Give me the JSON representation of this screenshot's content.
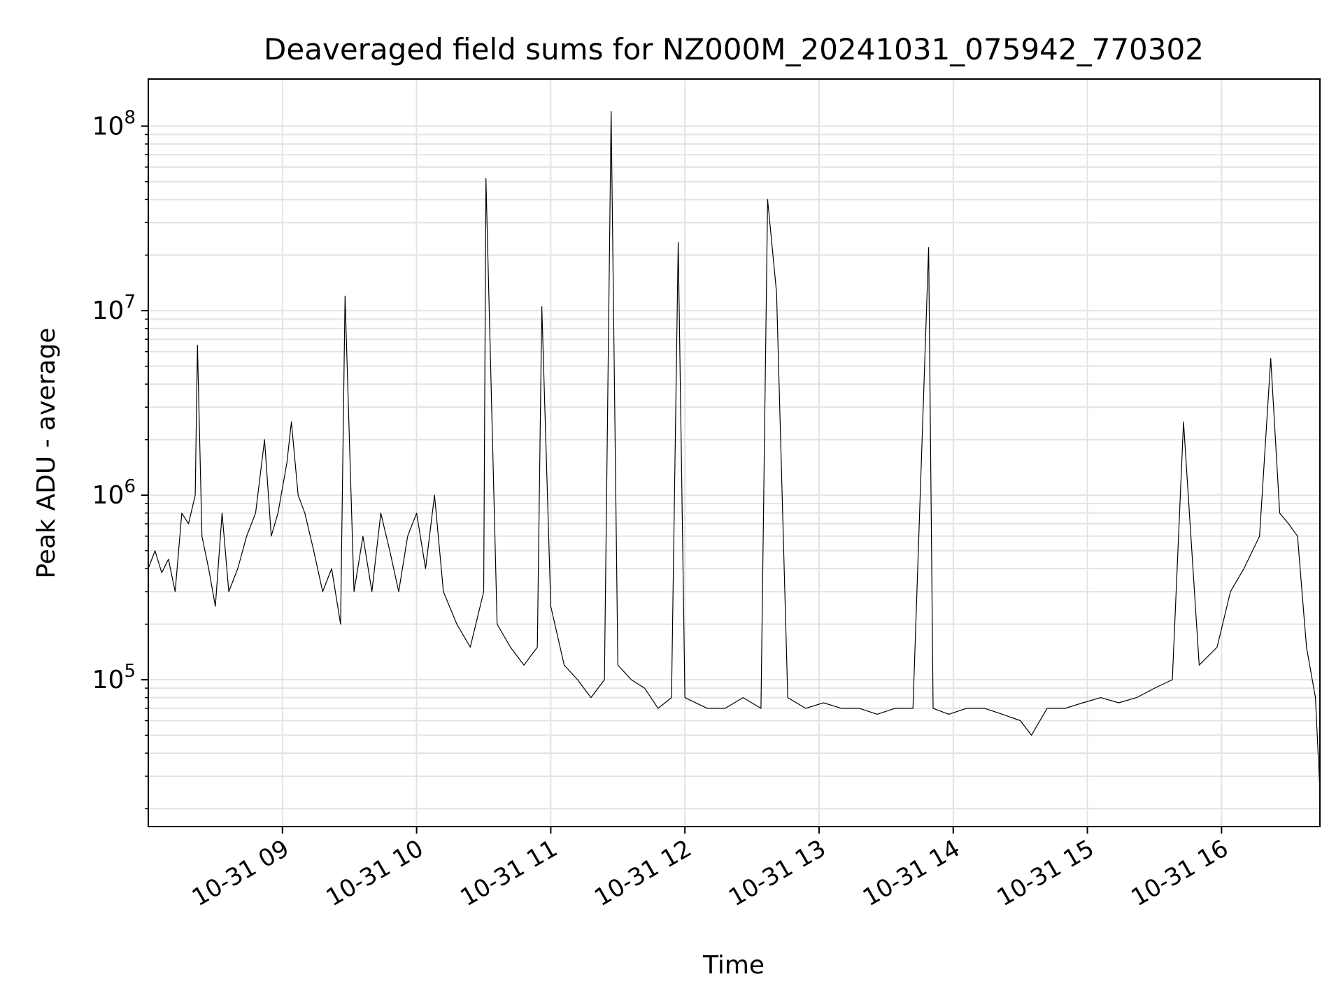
{
  "chart_data": {
    "type": "line",
    "title": "Deaveraged field sums for NZ000M_20241031_075942_770302",
    "xlabel": "Time",
    "ylabel": "Peak ADU - average",
    "yscale": "log",
    "ylim": [
      16000,
      180000000
    ],
    "xlim": [
      "2024-10-31 08:00",
      "2024-10-31 16:44"
    ],
    "grid": true,
    "line_color": "#000000",
    "x_ticks": [
      {
        "t": "2024-10-31 09:00",
        "label": "10-31 09"
      },
      {
        "t": "2024-10-31 10:00",
        "label": "10-31 10"
      },
      {
        "t": "2024-10-31 11:00",
        "label": "10-31 11"
      },
      {
        "t": "2024-10-31 12:00",
        "label": "10-31 12"
      },
      {
        "t": "2024-10-31 13:00",
        "label": "10-31 13"
      },
      {
        "t": "2024-10-31 14:00",
        "label": "10-31 14"
      },
      {
        "t": "2024-10-31 15:00",
        "label": "10-31 15"
      },
      {
        "t": "2024-10-31 16:00",
        "label": "10-31 16"
      }
    ],
    "y_ticks": [
      {
        "value": 100000,
        "base": "10",
        "exp": "5"
      },
      {
        "value": 1000000,
        "base": "10",
        "exp": "6"
      },
      {
        "value": 10000000,
        "base": "10",
        "exp": "7"
      },
      {
        "value": 100000000,
        "base": "10",
        "exp": "8"
      }
    ],
    "series": [
      {
        "x": [
          "2024-10-31 08:00",
          "2024-10-31 08:03",
          "2024-10-31 08:06",
          "2024-10-31 08:09",
          "2024-10-31 08:12",
          "2024-10-31 08:15",
          "2024-10-31 08:18",
          "2024-10-31 08:21",
          "2024-10-31 08:22",
          "2024-10-31 08:24",
          "2024-10-31 08:27",
          "2024-10-31 08:30",
          "2024-10-31 08:33",
          "2024-10-31 08:36",
          "2024-10-31 08:40",
          "2024-10-31 08:44",
          "2024-10-31 08:48",
          "2024-10-31 08:52",
          "2024-10-31 08:55",
          "2024-10-31 08:58",
          "2024-10-31 09:02",
          "2024-10-31 09:04",
          "2024-10-31 09:07",
          "2024-10-31 09:10",
          "2024-10-31 09:14",
          "2024-10-31 09:18",
          "2024-10-31 09:22",
          "2024-10-31 09:26",
          "2024-10-31 09:28",
          "2024-10-31 09:32",
          "2024-10-31 09:36",
          "2024-10-31 09:40",
          "2024-10-31 09:44",
          "2024-10-31 09:48",
          "2024-10-31 09:52",
          "2024-10-31 09:56",
          "2024-10-31 10:00",
          "2024-10-31 10:04",
          "2024-10-31 10:08",
          "2024-10-31 10:12",
          "2024-10-31 10:18",
          "2024-10-31 10:24",
          "2024-10-31 10:30",
          "2024-10-31 10:31",
          "2024-10-31 10:36",
          "2024-10-31 10:42",
          "2024-10-31 10:48",
          "2024-10-31 10:54",
          "2024-10-31 10:56",
          "2024-10-31 11:00",
          "2024-10-31 11:06",
          "2024-10-31 11:12",
          "2024-10-31 11:18",
          "2024-10-31 11:24",
          "2024-10-31 11:27",
          "2024-10-31 11:30",
          "2024-10-31 11:36",
          "2024-10-31 11:42",
          "2024-10-31 11:48",
          "2024-10-31 11:54",
          "2024-10-31 11:57",
          "2024-10-31 12:00",
          "2024-10-31 12:10",
          "2024-10-31 12:18",
          "2024-10-31 12:26",
          "2024-10-31 12:34",
          "2024-10-31 12:37",
          "2024-10-31 12:41",
          "2024-10-31 12:46",
          "2024-10-31 12:54",
          "2024-10-31 13:02",
          "2024-10-31 13:10",
          "2024-10-31 13:18",
          "2024-10-31 13:26",
          "2024-10-31 13:34",
          "2024-10-31 13:42",
          "2024-10-31 13:49",
          "2024-10-31 13:51",
          "2024-10-31 13:58",
          "2024-10-31 14:06",
          "2024-10-31 14:14",
          "2024-10-31 14:22",
          "2024-10-31 14:30",
          "2024-10-31 14:35",
          "2024-10-31 14:42",
          "2024-10-31 14:50",
          "2024-10-31 14:58",
          "2024-10-31 15:06",
          "2024-10-31 15:14",
          "2024-10-31 15:22",
          "2024-10-31 15:30",
          "2024-10-31 15:38",
          "2024-10-31 15:43",
          "2024-10-31 15:50",
          "2024-10-31 15:58",
          "2024-10-31 16:04",
          "2024-10-31 16:10",
          "2024-10-31 16:17",
          "2024-10-31 16:22",
          "2024-10-31 16:26",
          "2024-10-31 16:30",
          "2024-10-31 16:34",
          "2024-10-31 16:38",
          "2024-10-31 16:42",
          "2024-10-31 16:44"
        ],
        "y": [
          400000,
          500000,
          380000,
          450000,
          300000,
          800000,
          700000,
          1000000,
          6500000,
          600000,
          400000,
          250000,
          800000,
          300000,
          400000,
          600000,
          800000,
          2000000,
          600000,
          800000,
          1500000,
          2500000,
          1000000,
          800000,
          500000,
          300000,
          400000,
          200000,
          12000000,
          300000,
          600000,
          300000,
          800000,
          500000,
          300000,
          600000,
          800000,
          400000,
          1000000,
          300000,
          200000,
          150000,
          300000,
          52000000,
          200000,
          150000,
          120000,
          150000,
          10500000,
          250000,
          120000,
          100000,
          80000,
          100000,
          120000000,
          120000,
          100000,
          90000,
          70000,
          80000,
          23500000,
          80000,
          70000,
          70000,
          80000,
          70000,
          40000000,
          12500000,
          80000,
          70000,
          75000,
          70000,
          70000,
          65000,
          70000,
          70000,
          22000000,
          70000,
          65000,
          70000,
          70000,
          65000,
          60000,
          50000,
          70000,
          70000,
          75000,
          80000,
          75000,
          80000,
          90000,
          100000,
          2500000,
          120000,
          150000,
          300000,
          400000,
          600000,
          5500000,
          800000,
          700000,
          600000,
          150000,
          80000,
          25000
        ]
      }
    ]
  }
}
